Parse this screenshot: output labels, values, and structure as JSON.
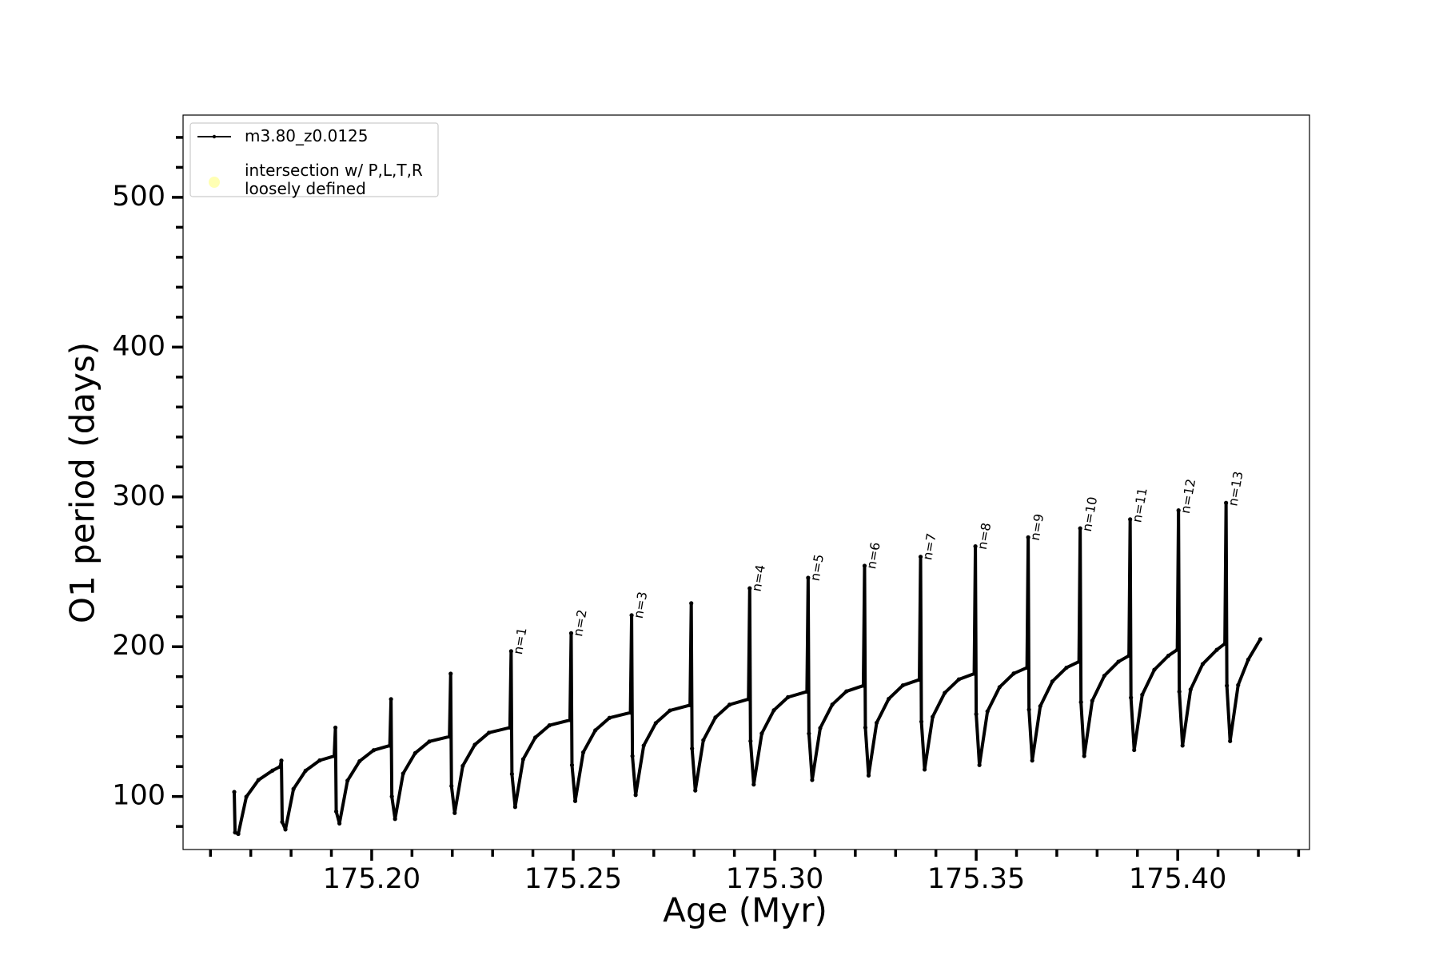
{
  "chart_data": {
    "type": "line",
    "xlabel": "Age (Myr)",
    "ylabel": "O1 period (days)",
    "xlim": [
      175.1532,
      175.4327
    ],
    "ylim": [
      64.6,
      554.9
    ],
    "xticks": [
      {
        "value": 175.2,
        "label": "175.20"
      },
      {
        "value": 175.25,
        "label": "175.25"
      },
      {
        "value": 175.3,
        "label": "175.30"
      },
      {
        "value": 175.35,
        "label": "175.35"
      },
      {
        "value": 175.4,
        "label": "175.40"
      }
    ],
    "xminorticks": [
      175.16,
      175.17,
      175.18,
      175.19,
      175.21,
      175.22,
      175.23,
      175.24,
      175.26,
      175.27,
      175.28,
      175.29,
      175.31,
      175.32,
      175.33,
      175.34,
      175.36,
      175.37,
      175.38,
      175.39,
      175.41,
      175.42,
      175.43
    ],
    "yticks": [
      100,
      200,
      300,
      400,
      500
    ],
    "yminorticks": [
      80,
      120,
      140,
      160,
      180,
      220,
      240,
      260,
      280,
      320,
      340,
      360,
      380,
      420,
      440,
      460,
      480,
      520,
      540
    ],
    "grid": false,
    "legend": "upper left",
    "series": [
      {
        "name": "m3.80_z0.0125",
        "color": "#000000",
        "x": [
          175.1659,
          175.1661,
          175.1669,
          175.1689,
          175.1719,
          175.1754,
          175.1773,
          175.1776,
          175.1778,
          175.1786,
          175.1806,
          175.1836,
          175.1871,
          175.1907,
          175.191,
          175.1912,
          175.192,
          175.194,
          175.197,
          175.2005,
          175.2045,
          175.2048,
          175.205,
          175.2058,
          175.2078,
          175.2108,
          175.2143,
          175.2193,
          175.2196,
          175.2198,
          175.2206,
          175.2226,
          175.2256,
          175.2291,
          175.2343,
          175.2346,
          175.2348,
          175.2356,
          175.2376,
          175.2406,
          175.2441,
          175.2492,
          175.2495,
          175.2497,
          175.2505,
          175.2525,
          175.2555,
          175.259,
          175.2642,
          175.2645,
          175.2647,
          175.2655,
          175.2675,
          175.2705,
          175.274,
          175.279,
          175.2793,
          175.2795,
          175.2803,
          175.2823,
          175.2853,
          175.2888,
          175.2935,
          175.2938,
          175.294,
          175.2948,
          175.2968,
          175.2998,
          175.3033,
          175.308,
          175.3083,
          175.3085,
          175.3093,
          175.3113,
          175.3143,
          175.3178,
          175.322,
          175.3223,
          175.3225,
          175.3233,
          175.3253,
          175.3283,
          175.3318,
          175.3359,
          175.3362,
          175.3364,
          175.3372,
          175.3392,
          175.3422,
          175.3457,
          175.3495,
          175.3498,
          175.35,
          175.3508,
          175.3528,
          175.3558,
          175.3593,
          175.3626,
          175.3629,
          175.3631,
          175.3639,
          175.3659,
          175.3689,
          175.3724,
          175.3755,
          175.3758,
          175.376,
          175.3768,
          175.3788,
          175.3818,
          175.3853,
          175.3879,
          175.3882,
          175.3884,
          175.3892,
          175.3912,
          175.3942,
          175.3977,
          175.3999,
          175.4002,
          175.4004,
          175.4012,
          175.4032,
          175.4062,
          175.4097,
          175.4117,
          175.412,
          175.4122,
          175.413,
          175.415,
          175.4175,
          175.4205
        ],
        "values": [
          103,
          76,
          75,
          99.8,
          111,
          117.3,
          120,
          124,
          83,
          78,
          105,
          117.2,
          124.1,
          127,
          146,
          90,
          82,
          110.6,
          123.6,
          130.9,
          134,
          165,
          100,
          85,
          115.3,
          129,
          136.7,
          140,
          182,
          107,
          89,
          120.4,
          134.6,
          142.6,
          146,
          197,
          115,
          93,
          124.9,
          139.4,
          147.5,
          151,
          209,
          121,
          97,
          129.5,
          144.2,
          152.5,
          156,
          221,
          127,
          101,
          134,
          149,
          157.4,
          161,
          229,
          132,
          104,
          137.6,
          152.8,
          161.3,
          165,
          239,
          137,
          108,
          142.1,
          157.6,
          166.3,
          170,
          246,
          142,
          111,
          145.7,
          161.4,
          170.2,
          174,
          254,
          146,
          114,
          149.2,
          165.2,
          174.2,
          178,
          260,
          150,
          118,
          153.2,
          169.2,
          178.2,
          182,
          267,
          155,
          121,
          156.8,
          173,
          182.1,
          186,
          273,
          158,
          124,
          160.3,
          176.8,
          186,
          190,
          279,
          163,
          127,
          163.9,
          180.6,
          190,
          194,
          285,
          166,
          131,
          167.9,
          184.6,
          194,
          198,
          291,
          170,
          134,
          171.4,
          188.4,
          197.9,
          202,
          296,
          174,
          137,
          174.4,
          191.4,
          205
        ]
      },
      {
        "name": "intersection w/ P,L,T,R\nloosely defined",
        "color": "#ffffb3",
        "marker": "circle",
        "x": [],
        "values": []
      }
    ],
    "annotations": [
      {
        "text": "n=1",
        "x": 175.2346,
        "y": 197
      },
      {
        "text": "n=2",
        "x": 175.2495,
        "y": 209
      },
      {
        "text": "n=3",
        "x": 175.2645,
        "y": 221
      },
      {
        "text": "n=4",
        "x": 175.2938,
        "y": 239
      },
      {
        "text": "n=5",
        "x": 175.3083,
        "y": 246
      },
      {
        "text": "n=6",
        "x": 175.3223,
        "y": 254
      },
      {
        "text": "n=7",
        "x": 175.3362,
        "y": 260
      },
      {
        "text": "n=8",
        "x": 175.3498,
        "y": 267
      },
      {
        "text": "n=9",
        "x": 175.3629,
        "y": 273
      },
      {
        "text": "n=10",
        "x": 175.3758,
        "y": 279
      },
      {
        "text": "n=11",
        "x": 175.3882,
        "y": 285
      },
      {
        "text": "n=12",
        "x": 175.4002,
        "y": 291
      },
      {
        "text": "n=13",
        "x": 175.412,
        "y": 296
      }
    ]
  }
}
